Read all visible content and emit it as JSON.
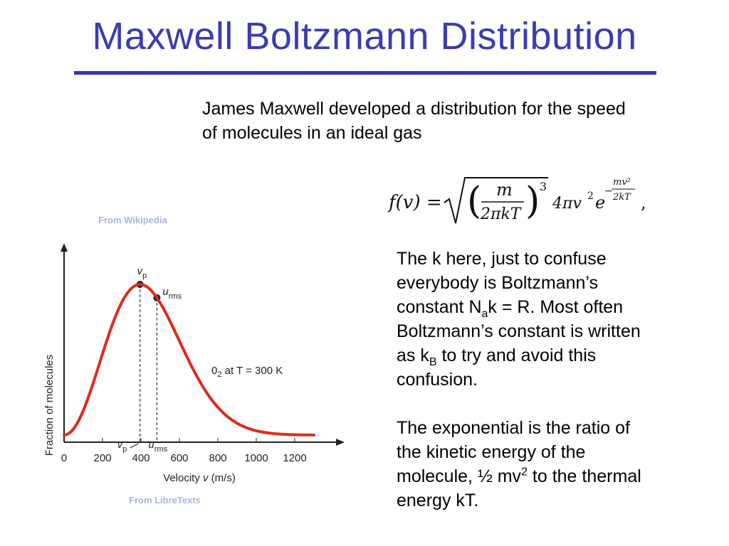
{
  "slide": {
    "title": "Maxwell Boltzmann Distribution",
    "intro_line1": "James Maxwell developed a distribution for the speed",
    "intro_line2": "of molecules in an ideal gas",
    "formula": {
      "lhs": "f(v) =",
      "numerator": "m",
      "denominator": "2πkT",
      "power": "3",
      "factor": "4πv",
      "v_power": "2",
      "exp_base": "e",
      "exp_sign": "−",
      "exp_num": "mv²",
      "exp_den": "2kT",
      "trailing": ","
    },
    "note1": {
      "line1": "The k here, just to confuse",
      "line2": "everybody is Boltzmann’s",
      "line3_a": "constant N",
      "line3_sub": "a",
      "line3_b": "k = R.  Most often",
      "line4": "Boltzmann’s constant is written",
      "line5_a": "as  k",
      "line5_sub": "B",
      "line5_b": " to try and avoid this",
      "line6": "confusion."
    },
    "note2": {
      "line1": "The exponential is the ratio of",
      "line2": "the kinetic energy of the",
      "line3_a": "molecule, ½ mv",
      "line3_sup": "2",
      "line3_b": " to the thermal",
      "line4": "energy kT."
    },
    "links": {
      "wikipedia": "From Wikipedia",
      "libretexts": "From LibreTexts"
    }
  },
  "chart_data": {
    "type": "line",
    "xlabel_prefix": "Velocity ",
    "xlabel_var": "v",
    "xlabel_suffix": " (m/s)",
    "ylabel": "Fraction of molecules",
    "xlim": [
      0,
      1400
    ],
    "x_ticks": [
      "0",
      "200",
      "400",
      "600",
      "800",
      "1000",
      "1200"
    ],
    "curve_label": {
      "a": "0",
      "sub": "2",
      "b": " at T = 300 K"
    },
    "markers": [
      {
        "name": "vp",
        "label": "v",
        "sub": "p",
        "x": 395
      },
      {
        "name": "urms",
        "label": "u",
        "sub": "rms",
        "x": 483
      }
    ],
    "series": [
      {
        "color": "#dd2a1b",
        "x_max": 1300
      }
    ]
  }
}
